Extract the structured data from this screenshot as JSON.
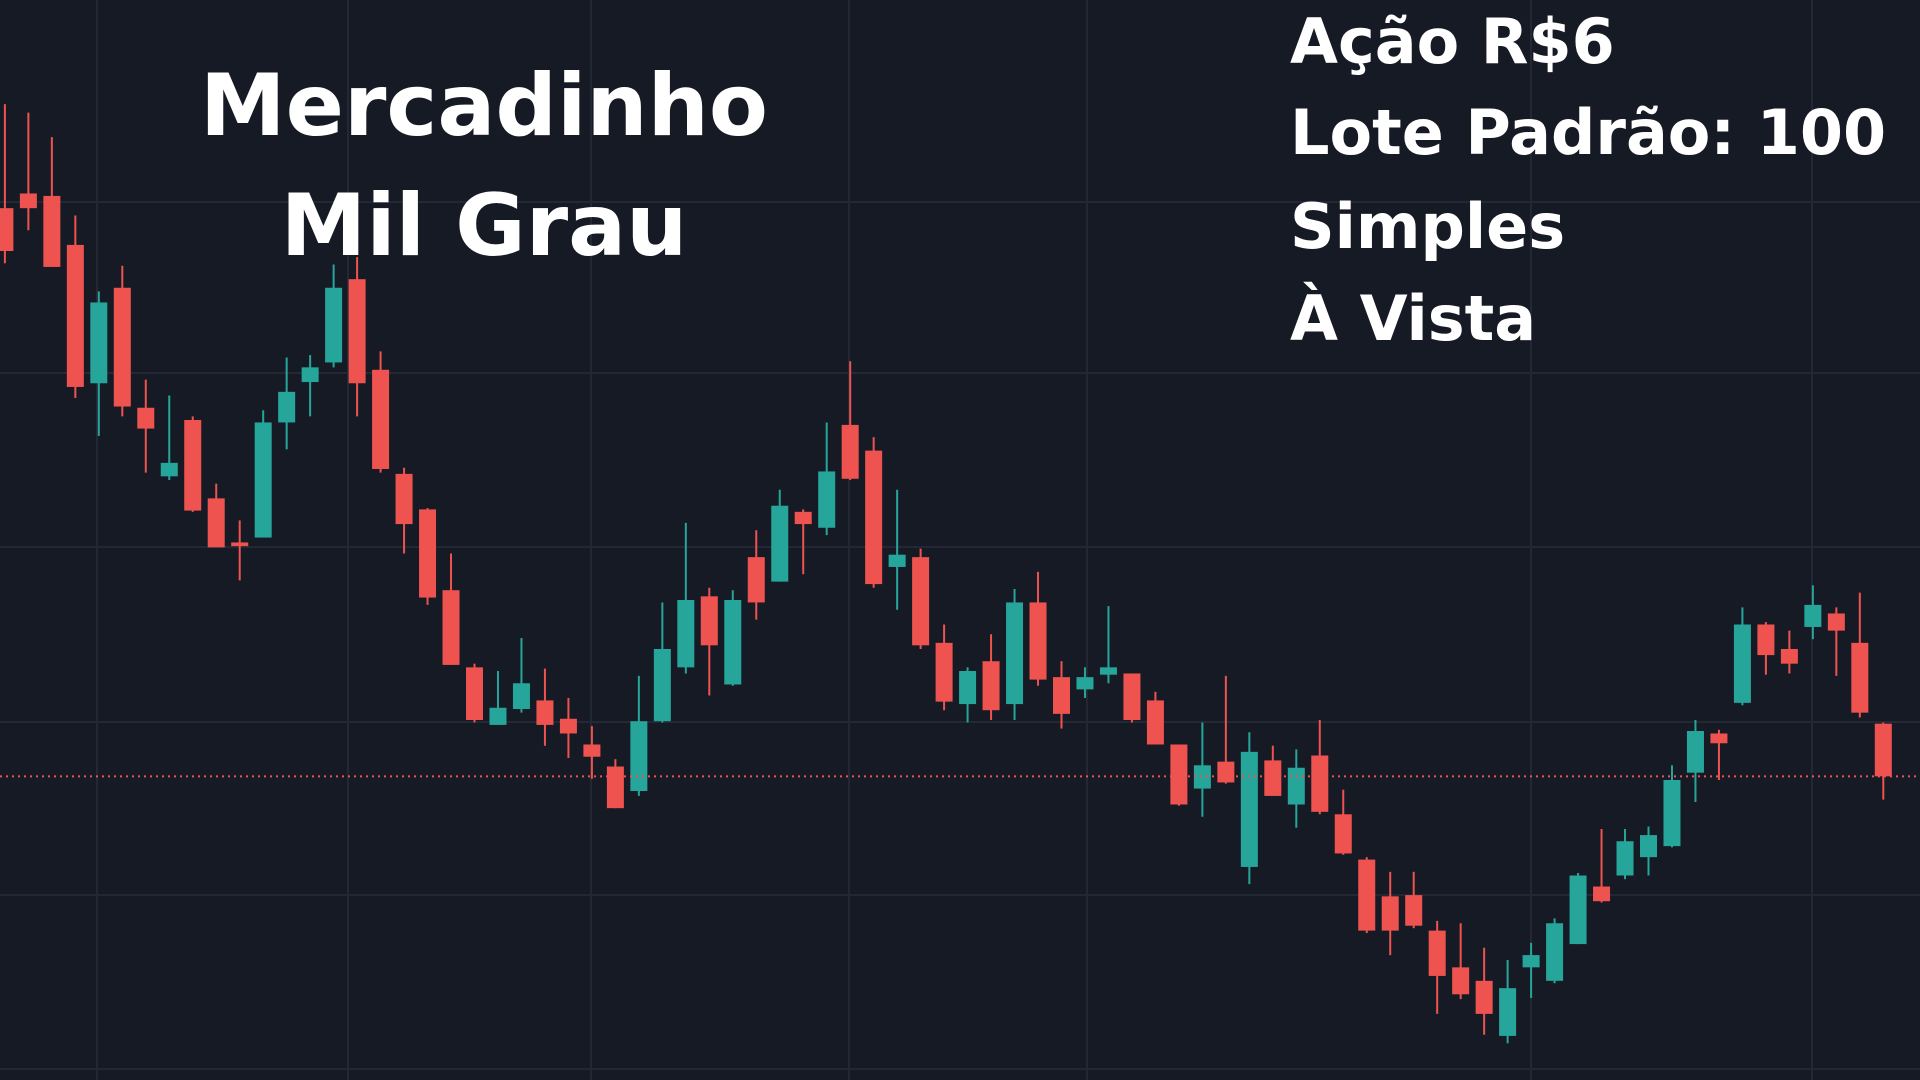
{
  "chart_data": {
    "type": "candlestick",
    "title": [
      "Mercadinho",
      "Mil Grau"
    ],
    "info": [
      "Ação R$6",
      "Lote Padrão: 100",
      "Simples",
      "À Vista"
    ],
    "up_color": "#26a69a",
    "down_color": "#ef5350",
    "ylim": [
      1.8,
      90
    ],
    "last_price_line": true,
    "open": [
      73,
      74.2,
      74,
      70,
      58.7,
      66.5,
      56.7,
      51.1,
      55.7,
      49.3,
      45.7,
      46.1,
      55.5,
      58.8,
      60.4,
      67.2,
      59.8,
      51.3,
      48.4,
      41.8,
      35.5,
      30.8,
      32.1,
      32.8,
      31.3,
      29.2,
      27.4,
      25.4,
      31.1,
      35.5,
      41.3,
      34.1,
      44.5,
      42.5,
      48.2,
      46.9,
      55.3,
      53.2,
      43.7,
      44.5,
      37.5,
      32.5,
      36,
      32.5,
      40.8,
      34.7,
      33.7,
      34.9,
      35,
      32.8,
      29.2,
      25.6,
      27.8,
      19.2,
      27.9,
      24.3,
      28.3,
      23.5,
      19.8,
      16.8,
      16.9,
      14,
      11,
      9.9,
      5.4,
      11,
      9.9,
      12.9,
      17.6,
      18.5,
      20,
      20.9,
      26.9,
      30.1,
      32.6,
      39,
      37,
      38.8,
      39.9,
      37.5,
      30.9
    ],
    "high": [
      81.5,
      80.8,
      78.8,
      72.4,
      66.2,
      68.3,
      59,
      57.7,
      56,
      50.5,
      47.5,
      56.5,
      60.8,
      61,
      68.4,
      69,
      61.3,
      51.8,
      48.5,
      44.8,
      35.8,
      35.2,
      37.9,
      35.4,
      33,
      30.7,
      28,
      34.8,
      40.8,
      47.3,
      42,
      41.8,
      46.7,
      50,
      48.4,
      55.5,
      60.5,
      54.3,
      50,
      45.2,
      39,
      35.5,
      38.2,
      41.9,
      43.3,
      36,
      35.5,
      40.5,
      35,
      33.5,
      29.2,
      31,
      34.8,
      30.2,
      29.1,
      28.8,
      31.2,
      25.5,
      20,
      18.8,
      18.8,
      14.8,
      14.6,
      12.6,
      11.6,
      13,
      15,
      18.7,
      22.3,
      22.3,
      22.5,
      27.5,
      31.2,
      30.4,
      40.4,
      39.2,
      38.5,
      42.2,
      40.4,
      41.6,
      31
    ],
    "low": [
      68.5,
      71.2,
      68.2,
      57.5,
      54.4,
      56,
      51.4,
      50.8,
      48.2,
      45.3,
      42.6,
      46.1,
      53.3,
      56,
      60,
      56,
      51.4,
      44.8,
      40.6,
      35.7,
      31,
      30.8,
      31.8,
      29.1,
      28.1,
      26.4,
      24,
      25,
      31,
      35,
      33.2,
      34,
      39.4,
      42.5,
      43.1,
      46.3,
      50.8,
      42,
      40.2,
      37,
      32,
      31,
      31.2,
      31.2,
      34,
      30.5,
      33,
      34.2,
      31,
      29.2,
      24.2,
      23.3,
      26,
      17.8,
      25,
      22.4,
      23.5,
      20.2,
      13.8,
      12,
      14.2,
      7.2,
      8.4,
      5.5,
      4.8,
      8.5,
      9.7,
      12.9,
      16.3,
      18.2,
      18.5,
      20.8,
      24.5,
      26.3,
      32.4,
      34.9,
      35,
      37.8,
      34.8,
      31.4,
      24.7
    ],
    "close": [
      69.5,
      73,
      68.2,
      58.4,
      65.3,
      56.8,
      55,
      52.2,
      48.3,
      45.3,
      45.4,
      55.5,
      58,
      60,
      66.5,
      58.7,
      51.7,
      47.2,
      41.2,
      35.7,
      31.2,
      32.2,
      34.2,
      30.8,
      30.1,
      28.2,
      24,
      31.1,
      37,
      41,
      37.3,
      41,
      40.8,
      48.7,
      47.2,
      51.5,
      50.9,
      42.3,
      44.7,
      37.3,
      32.7,
      35.2,
      32,
      40.8,
      34.5,
      31.7,
      34.7,
      35.5,
      31.2,
      29.2,
      24.3,
      27.5,
      26.1,
      28.6,
      25,
      27.3,
      23.7,
      20.3,
      14,
      14,
      14.4,
      10.3,
      8.8,
      7.2,
      9.3,
      12,
      14.6,
      18.5,
      16.4,
      21.3,
      21.8,
      26.3,
      30.3,
      29.3,
      39,
      36.5,
      35.8,
      40.6,
      38.5,
      31.8,
      26.6
    ]
  }
}
